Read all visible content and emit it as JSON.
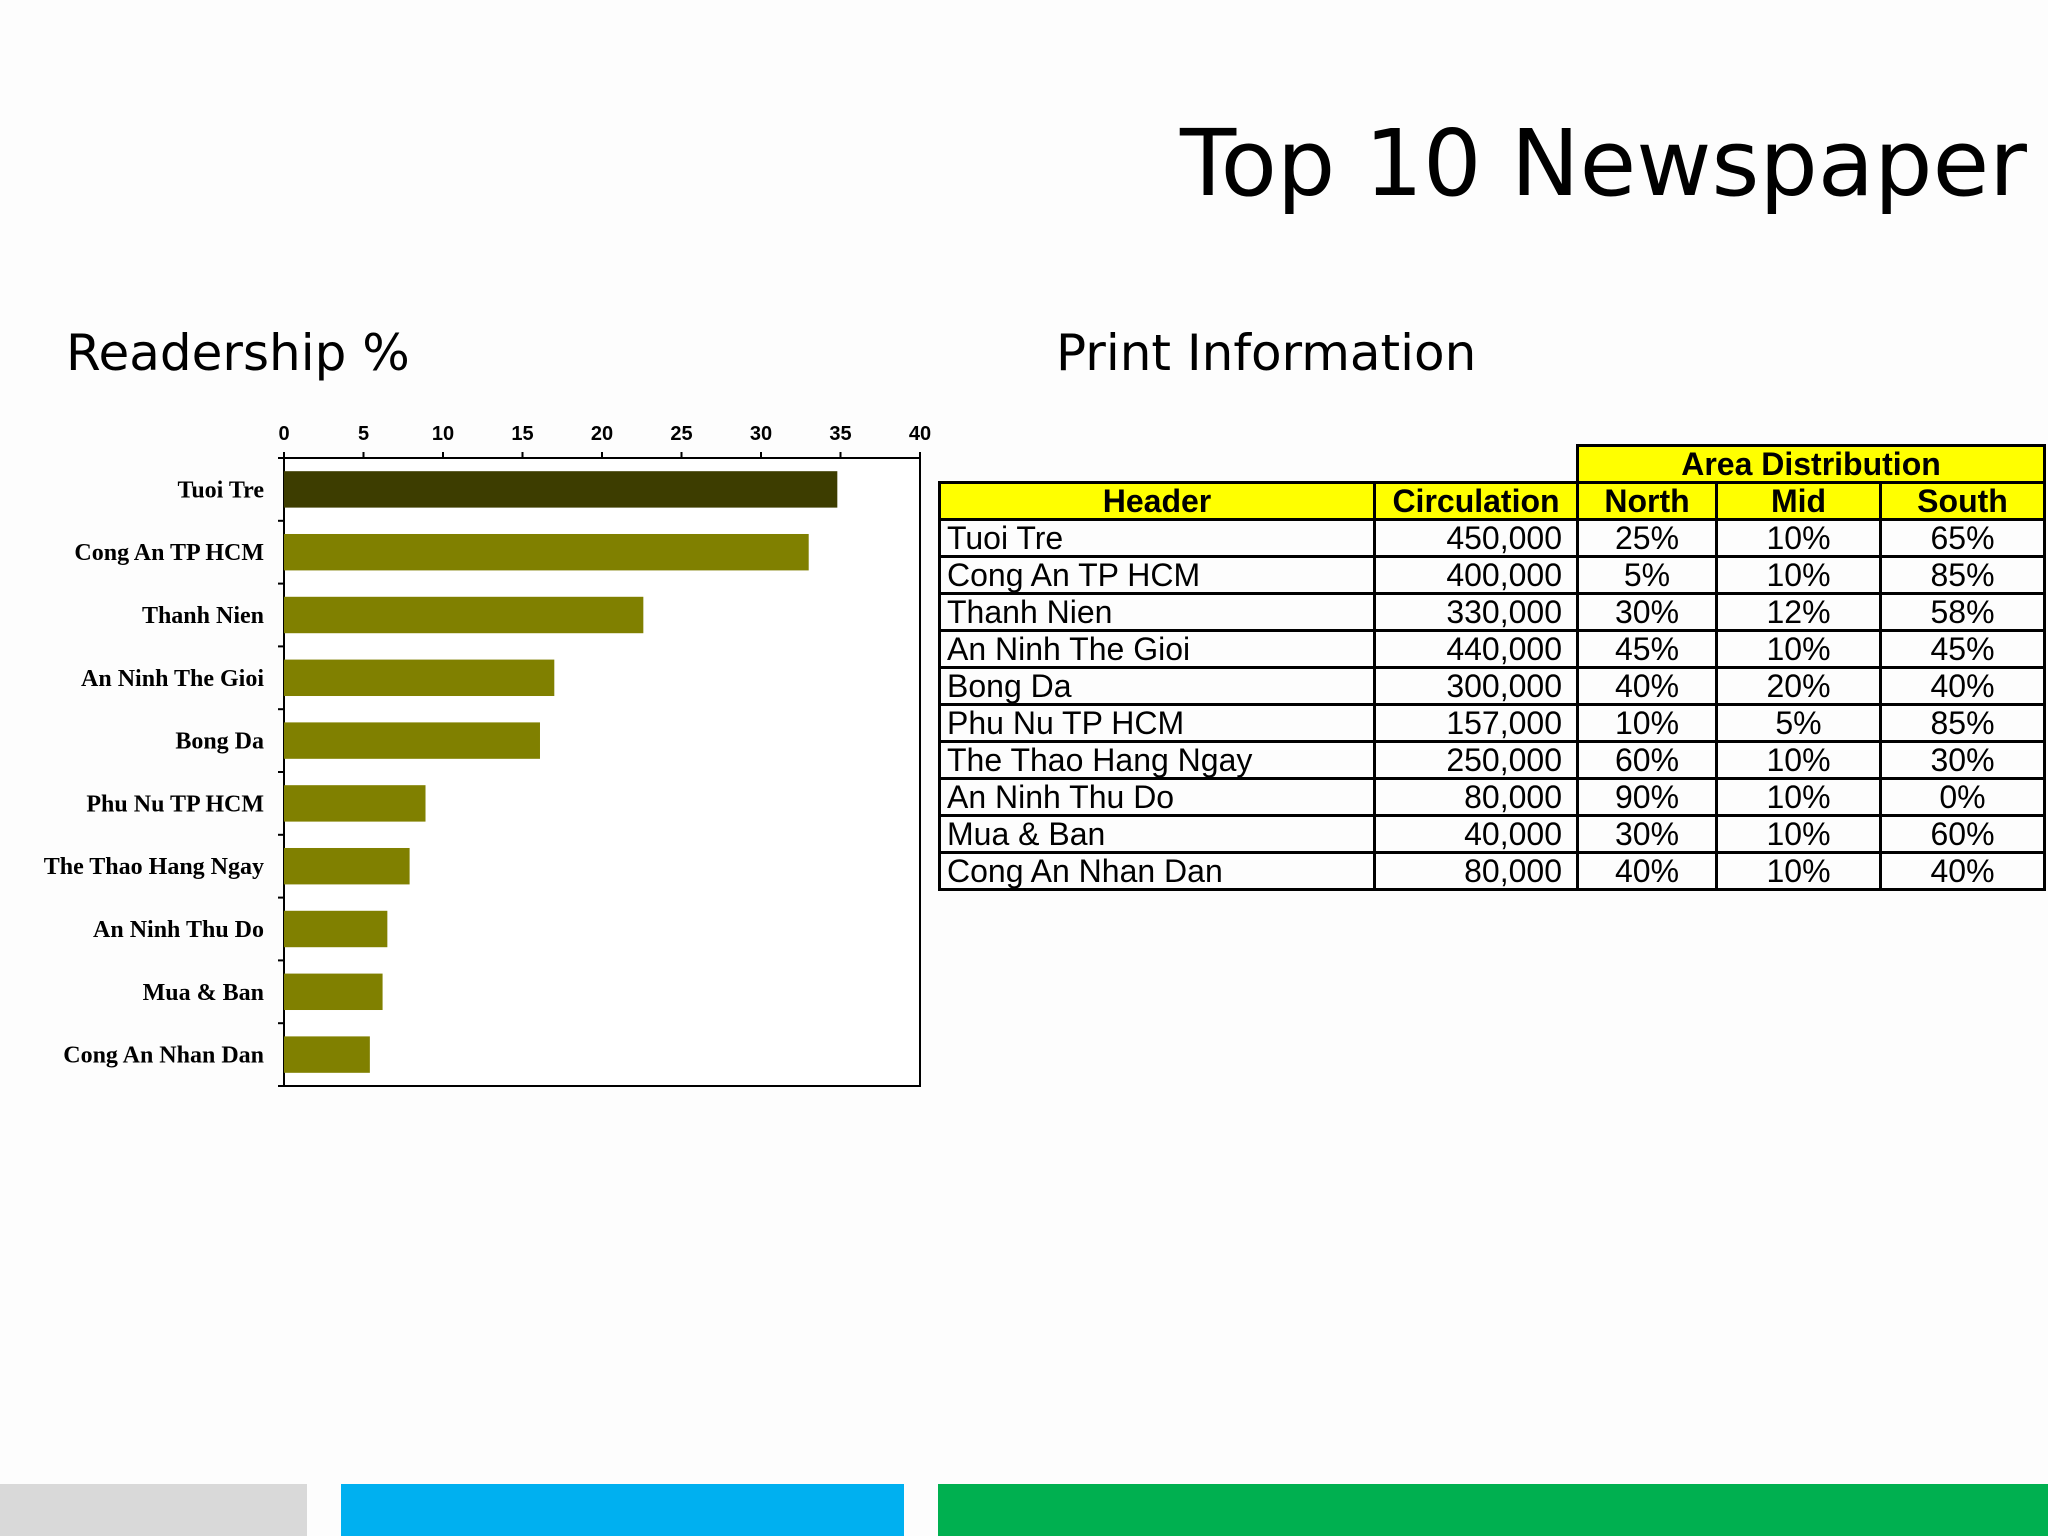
{
  "slide": {
    "title": "Top 10 Newspaper",
    "left_heading": "Readership %",
    "right_heading": "Print Information"
  },
  "chart_data": {
    "type": "bar",
    "orientation": "horizontal",
    "categories": [
      "Tuoi Tre",
      "Cong An TP HCM",
      "Thanh Nien",
      "An Ninh The Gioi",
      "Bong Da",
      "Phu Nu TP HCM",
      "The Thao Hang Ngay",
      "An Ninh Thu Do",
      "Mua & Ban",
      "Cong An Nhan Dan"
    ],
    "values": [
      34.8,
      33,
      22.6,
      17,
      16.1,
      8.9,
      7.9,
      6.5,
      6.2,
      5.4
    ],
    "xlim": [
      0,
      40
    ],
    "xticks": [
      "0",
      "5",
      "10",
      "15",
      "20",
      "25",
      "30",
      "35",
      "40"
    ],
    "x_axis_position": "top",
    "grid": false,
    "colors": {
      "highlight": "#3d3d00",
      "bar": "#808000"
    }
  },
  "print_table": {
    "group_header": "Area Distribution",
    "headers": [
      "Header",
      "Circulation",
      "North",
      "Mid",
      "South"
    ],
    "rows": [
      [
        "Tuoi Tre",
        "450,000",
        "25%",
        "10%",
        "65%"
      ],
      [
        "Cong An TP HCM",
        "400,000",
        "5%",
        "10%",
        "85%"
      ],
      [
        "Thanh Nien",
        "330,000",
        "30%",
        "12%",
        "58%"
      ],
      [
        "An Ninh The Gioi",
        "440,000",
        "45%",
        "10%",
        "45%"
      ],
      [
        "Bong Da",
        "300,000",
        "40%",
        "20%",
        "40%"
      ],
      [
        "Phu Nu TP HCM",
        "157,000",
        "10%",
        "5%",
        "85%"
      ],
      [
        "The Thao Hang Ngay",
        "250,000",
        "60%",
        "10%",
        "30%"
      ],
      [
        "An Ninh Thu Do",
        "80,000",
        "90%",
        "10%",
        "0%"
      ],
      [
        "Mua & Ban",
        "40,000",
        "30%",
        "10%",
        "60%"
      ],
      [
        "Cong An Nhan Dan",
        "80,000",
        "40%",
        "10%",
        "40%"
      ]
    ],
    "header_color": "#ffff00"
  },
  "footer": {
    "colors": [
      "#d9d9d9",
      "#00b0f0",
      "#00b050"
    ]
  }
}
